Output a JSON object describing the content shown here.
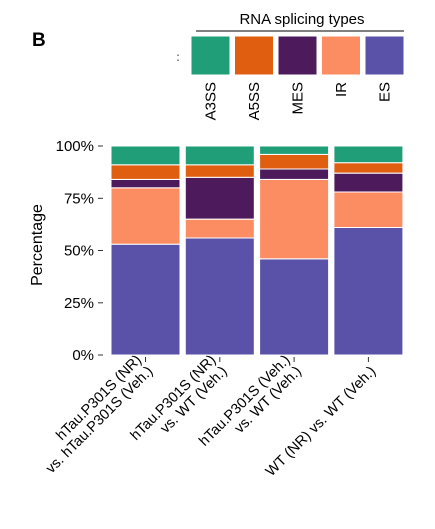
{
  "panel_label": "B",
  "chart_data": {
    "type": "bar",
    "stacked": true,
    "legend_title": "RNA splicing types",
    "legend_position": "top",
    "categories": [
      [
        "hTau.P301S (NR)",
        "vs. hTau.P301S (Veh.)"
      ],
      [
        "hTau.P301S (NR)",
        "vs. WT (Veh.)"
      ],
      [
        "hTau.P301S (Veh.)",
        "vs. WT (Veh.)"
      ],
      [
        "WT (NR) vs. WT (Veh.)"
      ]
    ],
    "series": [
      {
        "name": "ES",
        "color": "#5A52A8",
        "values": [
          53,
          56,
          46,
          61
        ]
      },
      {
        "name": "IR",
        "color": "#FC8D62",
        "values": [
          27,
          9,
          38,
          17
        ]
      },
      {
        "name": "MES",
        "color": "#4D1A5C",
        "values": [
          4,
          20,
          5,
          9
        ]
      },
      {
        "name": "A5SS",
        "color": "#E05E10",
        "values": [
          7,
          6,
          7,
          5
        ]
      },
      {
        "name": "A3SS",
        "color": "#1F9E77",
        "values": [
          9,
          9,
          4,
          8
        ]
      }
    ],
    "legend_order": [
      "A3SS",
      "A5SS",
      "MES",
      "IR",
      "ES"
    ],
    "ylabel": "Percentage",
    "xlabel": "",
    "ylim": [
      0,
      100
    ],
    "yticks": [
      "0%",
      "25%",
      "50%",
      "75%",
      "100%"
    ],
    "grid": false
  }
}
